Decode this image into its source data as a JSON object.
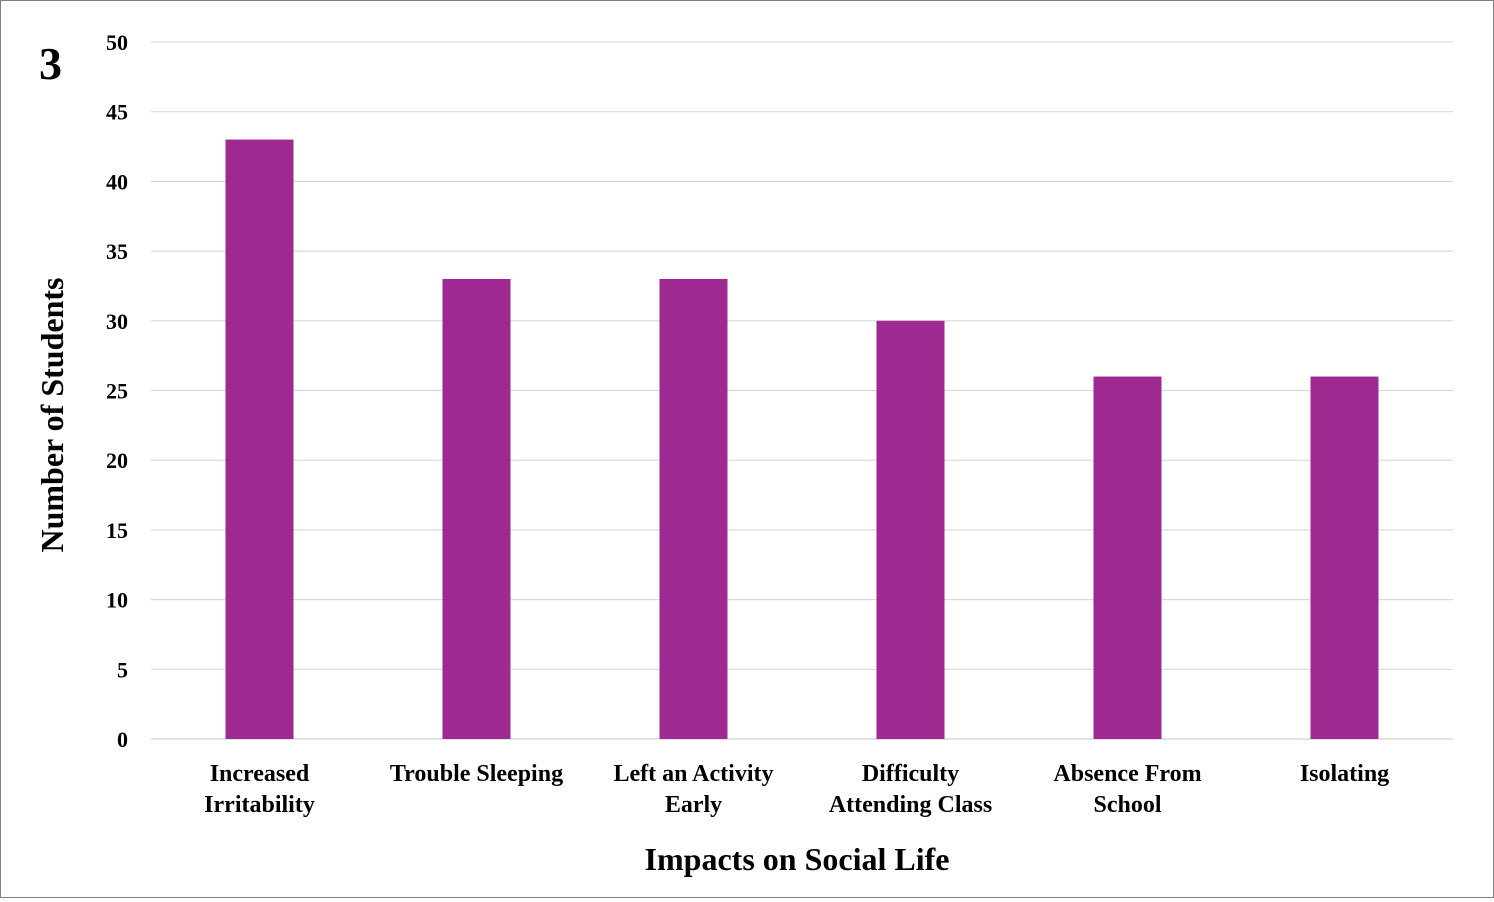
{
  "panel_label": "3",
  "colors": {
    "bar": "#9e2a91",
    "gridline": "#d9d9d9",
    "baseline": "#d9d9d9"
  },
  "chart_data": {
    "type": "bar",
    "categories": [
      [
        "Increased",
        "Irritability"
      ],
      [
        "Trouble Sleeping"
      ],
      [
        "Left an Activity",
        "Early"
      ],
      [
        "Difficulty",
        "Attending Class"
      ],
      [
        "Absence From",
        "School"
      ],
      [
        "Isolating"
      ]
    ],
    "values": [
      43,
      33,
      33,
      30,
      26,
      26
    ],
    "xlabel": "Impacts on Social Life",
    "ylabel": "Number of Students",
    "ylim": [
      0,
      50
    ],
    "yticks": [
      "0",
      "5",
      "10",
      "15",
      "20",
      "25",
      "30",
      "35",
      "40",
      "45",
      "50"
    ],
    "grid": true,
    "legend": "none"
  }
}
